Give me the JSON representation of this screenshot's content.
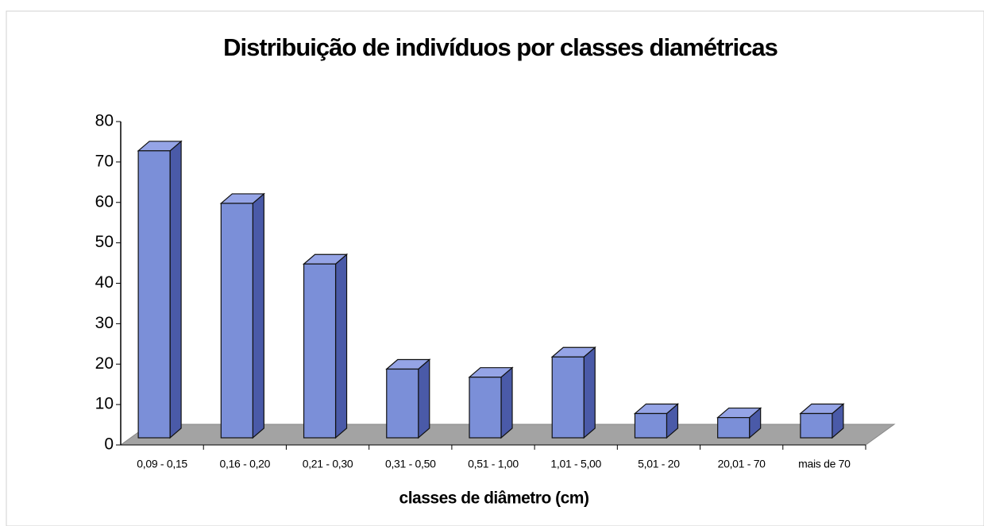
{
  "chart_data": {
    "type": "bar3d",
    "title": "Distribuição de indivíduos por classes diamétricas",
    "x_label": "classes de diâmetro (cm)",
    "categories": [
      "0,09 - 0,15",
      "0,16 - 0,20",
      "0,21 - 0,30",
      "0,31 - 0,50",
      "0,51 - 1,00",
      "1,01 - 5,00",
      "5,01 - 20",
      "20,01 - 70",
      "mais de 70"
    ],
    "values": [
      71,
      58,
      43,
      17,
      15,
      20,
      6,
      5,
      6
    ],
    "color": "#7b8fd8",
    "ylim": [
      0,
      80
    ],
    "yticks": [
      0,
      10,
      20,
      30,
      40,
      50,
      60,
      70,
      80
    ],
    "grid": false
  }
}
